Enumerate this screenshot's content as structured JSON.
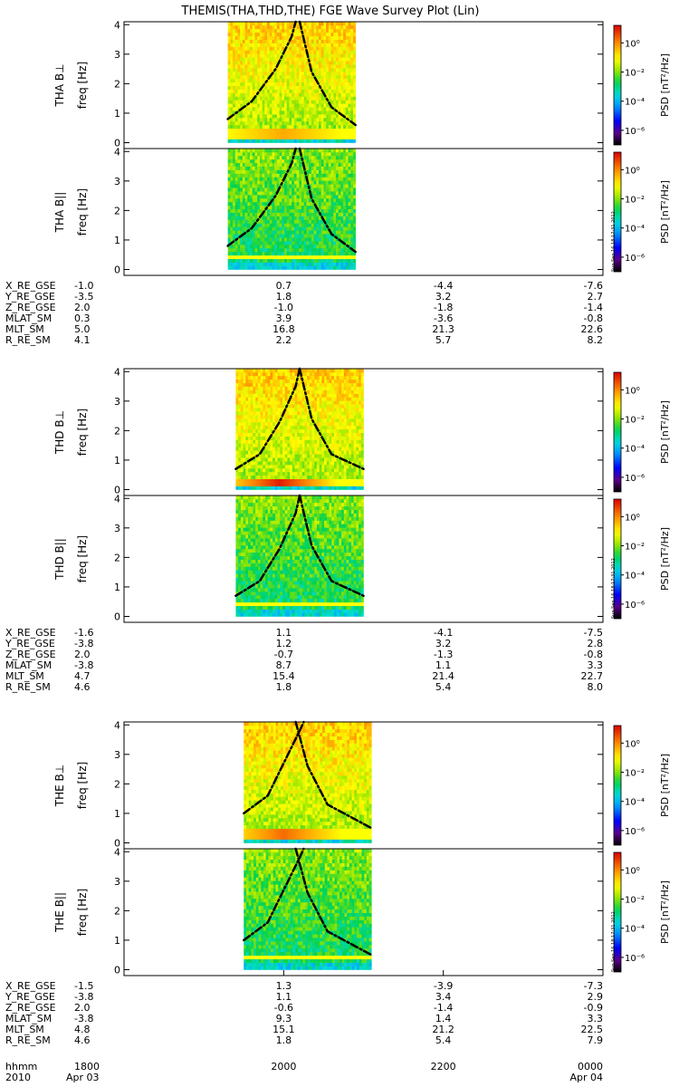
{
  "title": "THEMIS(THA,THD,THE) FGE Wave Survey Plot (Lin)",
  "stamp": "Sun Sep 16 18:17:31 2012",
  "colorbar": {
    "label": "PSD [nT²/Hz]",
    "tick_labels": [
      "10⁰",
      "10⁻²",
      "10⁻⁴",
      "10⁻⁶"
    ],
    "tick_exponents": [
      0,
      -2,
      -4,
      -6
    ],
    "range_exponents": [
      -7,
      1.2
    ]
  },
  "freq_axis": {
    "label": "freq [Hz]",
    "tick_labels": [
      "0",
      "1",
      "2",
      "3",
      "4"
    ],
    "range": [
      -0.2,
      4.1
    ]
  },
  "time_axis": {
    "row_labels": [
      "hhmm",
      "2010"
    ],
    "ticks": [
      {
        "hhmm": "1800",
        "date": "Apr 03"
      },
      {
        "hhmm": "2000",
        "date": ""
      },
      {
        "hhmm": "2200",
        "date": ""
      },
      {
        "hhmm": "0000",
        "date": "Apr 04"
      }
    ],
    "range_hours": [
      18.0,
      24.0
    ]
  },
  "chart_data": {
    "type": "heatmap",
    "xlabel": "hhmm",
    "ylabel": "freq [Hz]",
    "probes": [
      {
        "panels": [
          "THA B⊥",
          "THA B||"
        ],
        "data_interval_hours": [
          19.3,
          20.9
        ],
        "emic_band": {
          "center_time_hours": 20.0,
          "freq_hz": 0.3,
          "strength": 0.35
        },
        "overlay_lines": [
          {
            "style": "dash-dot",
            "points": [
              [
                19.3,
                0.8
              ],
              [
                19.6,
                1.4
              ],
              [
                19.9,
                2.5
              ],
              [
                20.1,
                3.6
              ],
              [
                20.15,
                4.1
              ]
            ]
          },
          {
            "style": "dash-dot",
            "points": [
              [
                20.2,
                4.1
              ],
              [
                20.35,
                2.4
              ],
              [
                20.6,
                1.2
              ],
              [
                20.9,
                0.6
              ]
            ]
          }
        ],
        "ephemeris": {
          "labels": [
            "X_RE_GSE",
            "Y_RE_GSE",
            "Z_RE_GSE",
            "MLAT_SM",
            "MLT_SM",
            "R_RE_SM"
          ],
          "columns": [
            [
              "-1.0",
              "-3.5",
              "2.0",
              "0.3",
              "5.0",
              "4.1"
            ],
            [
              "0.7",
              "1.8",
              "-1.0",
              "3.9",
              "16.8",
              "2.2"
            ],
            [
              "-4.4",
              "3.2",
              "-1.8",
              "-3.6",
              "21.3",
              "5.7"
            ],
            [
              "-7.6",
              "2.7",
              "-1.4",
              "-0.8",
              "22.6",
              "8.2"
            ]
          ]
        }
      },
      {
        "panels": [
          "THD B⊥",
          "THD B||"
        ],
        "data_interval_hours": [
          19.4,
          21.0
        ],
        "emic_band": {
          "center_time_hours": 19.95,
          "freq_hz": 0.25,
          "strength": 0.9
        },
        "overlay_lines": [
          {
            "style": "dash-dot",
            "points": [
              [
                19.4,
                0.7
              ],
              [
                19.7,
                1.2
              ],
              [
                19.95,
                2.3
              ],
              [
                20.15,
                3.5
              ],
              [
                20.2,
                4.1
              ]
            ]
          },
          {
            "style": "dash-dot",
            "points": [
              [
                20.2,
                4.1
              ],
              [
                20.35,
                2.4
              ],
              [
                20.6,
                1.2
              ],
              [
                21.0,
                0.7
              ]
            ]
          }
        ],
        "ephemeris": {
          "labels": [
            "X_RE_GSE",
            "Y_RE_GSE",
            "Z_RE_GSE",
            "MLAT_SM",
            "MLT_SM",
            "R_RE_SM"
          ],
          "columns": [
            [
              "-1.6",
              "-3.8",
              "2.0",
              "-3.8",
              "4.7",
              "4.6"
            ],
            [
              "1.1",
              "1.2",
              "-0.7",
              "8.7",
              "15.4",
              "1.8"
            ],
            [
              "-4.1",
              "3.2",
              "-1.3",
              "1.1",
              "21.4",
              "5.4"
            ],
            [
              "-7.5",
              "2.8",
              "-0.8",
              "3.3",
              "22.7",
              "8.0"
            ]
          ]
        }
      },
      {
        "panels": [
          "THE B⊥",
          "THE B||"
        ],
        "data_interval_hours": [
          19.5,
          21.1
        ],
        "emic_band": {
          "center_time_hours": 20.0,
          "freq_hz": 0.3,
          "strength": 0.6
        },
        "overlay_lines": [
          {
            "style": "dash-dot",
            "points": [
              [
                19.5,
                1.0
              ],
              [
                19.8,
                1.6
              ],
              [
                20.0,
                2.7
              ],
              [
                20.2,
                3.8
              ],
              [
                20.25,
                4.1
              ]
            ]
          },
          {
            "style": "dash-dot",
            "points": [
              [
                20.15,
                4.1
              ],
              [
                20.3,
                2.6
              ],
              [
                20.55,
                1.3
              ],
              [
                21.1,
                0.5
              ]
            ]
          }
        ],
        "ephemeris": {
          "labels": [
            "X_RE_GSE",
            "Y_RE_GSE",
            "Z_RE_GSE",
            "MLAT_SM",
            "MLT_SM",
            "R_RE_SM"
          ],
          "columns": [
            [
              "-1.5",
              "-3.8",
              "2.0",
              "-3.8",
              "4.8",
              "4.6"
            ],
            [
              "1.3",
              "1.1",
              "-0.6",
              "9.3",
              "15.1",
              "1.8"
            ],
            [
              "-3.9",
              "3.4",
              "-1.4",
              "1.4",
              "21.2",
              "5.4"
            ],
            [
              "-7.3",
              "2.9",
              "-0.9",
              "3.3",
              "22.5",
              "7.9"
            ]
          ]
        }
      }
    ]
  }
}
